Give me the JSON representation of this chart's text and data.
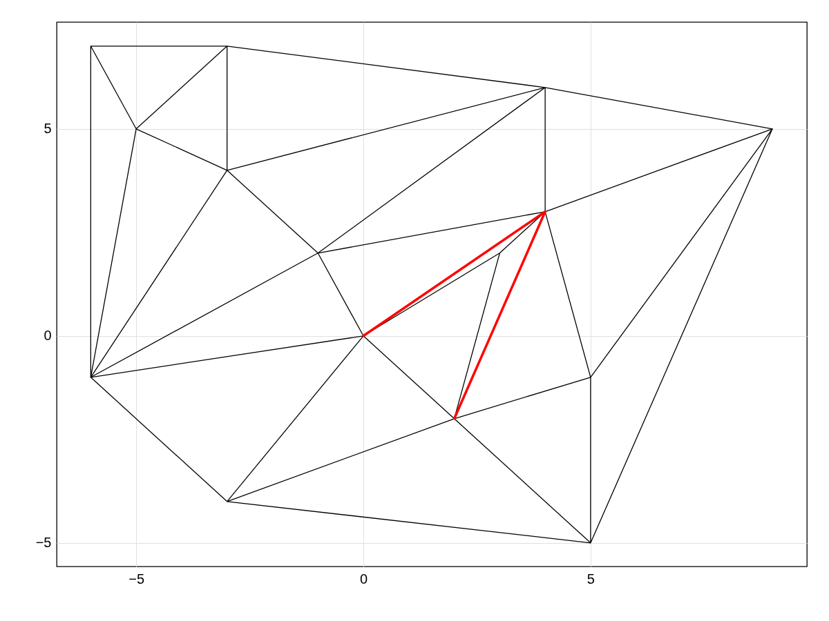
{
  "chart_data": {
    "type": "line",
    "xlim": [
      -6.75,
      9.76
    ],
    "ylim": [
      -5.57,
      7.58
    ],
    "xticks": [
      {
        "value": -5,
        "label": "−5"
      },
      0,
      5
    ],
    "yticks": [
      {
        "value": -5,
        "label": "−5"
      },
      0,
      5
    ],
    "grid": true,
    "series": [
      {
        "color": "#000000",
        "x": [
          -6,
          -3,
          -5,
          -6,
          -6,
          -5,
          -3,
          -3,
          -3,
          4,
          -3,
          -1,
          4,
          9,
          4,
          4
        ],
        "values": [
          7,
          7,
          5,
          7,
          -1,
          5,
          4,
          7,
          7,
          6,
          4,
          2,
          6,
          5,
          3,
          6
        ]
      },
      {
        "color": "#000000",
        "x": [
          -3,
          -6,
          -1,
          4,
          3,
          0,
          -1
        ],
        "values": [
          4,
          -1,
          2,
          3,
          2,
          0,
          2
        ]
      },
      {
        "color": "#000000",
        "x": [
          4,
          5,
          9,
          5,
          5,
          2,
          5,
          -3,
          2,
          0,
          -6,
          -3,
          0
        ],
        "values": [
          3,
          -1,
          5,
          -5,
          -1,
          -2,
          -5,
          -4,
          -2,
          0,
          -1,
          -4,
          0
        ]
      },
      {
        "color": "#000000",
        "x": [
          3,
          2
        ],
        "values": [
          2,
          -2
        ]
      },
      {
        "color": "#ff0000",
        "x": [
          0,
          4,
          2
        ],
        "values": [
          0,
          3,
          -2
        ]
      }
    ]
  }
}
